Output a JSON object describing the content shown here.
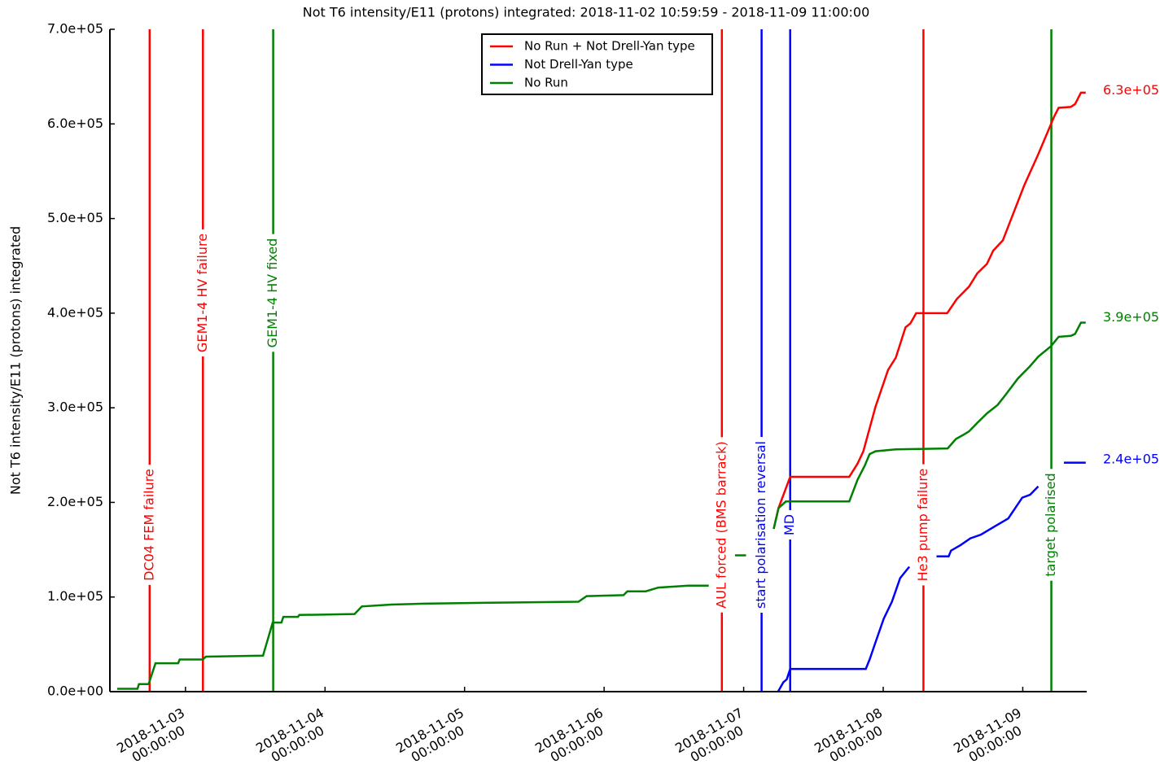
{
  "chart_data": {
    "type": "line",
    "title": "Not T6 intensity/E11 (protons) integrated: 2018-11-02 10:59:59 - 2018-11-09 11:00:00",
    "y_label": "Not T6 intensity/E11 (protons) integrated",
    "xlim": [
      "2018-11-02 10:59:59",
      "2018-11-09 11:00:00"
    ],
    "xticks": [
      "2018-11-03 00:00:00",
      "2018-11-04 00:00:00",
      "2018-11-05 00:00:00",
      "2018-11-06 00:00:00",
      "2018-11-07 00:00:00",
      "2018-11-08 00:00:00",
      "2018-11-09 00:00:00"
    ],
    "ylim": [
      0,
      700000
    ],
    "yticks": [
      {
        "value": 0,
        "label": "0.0e+00"
      },
      {
        "value": 100000,
        "label": "1.0e+05"
      },
      {
        "value": 200000,
        "label": "2.0e+05"
      },
      {
        "value": 300000,
        "label": "3.0e+05"
      },
      {
        "value": 400000,
        "label": "4.0e+05"
      },
      {
        "value": 500000,
        "label": "5.0e+05"
      },
      {
        "value": 600000,
        "label": "6.0e+05"
      },
      {
        "value": 700000,
        "label": "7.0e+05"
      }
    ],
    "legend": "upper center",
    "series": [
      {
        "name": "No Run + Not Drell-Yan type",
        "color": "#ff0000",
        "x": [
          "2018-11-07 05:10:00",
          "2018-11-07 06:00:00",
          "2018-11-07 08:00:00",
          "2018-11-07 18:10:00",
          "2018-11-07 19:35:00",
          "2018-11-07 20:35:00",
          "2018-11-07 22:40:00",
          "2018-11-08 00:50:00",
          "2018-11-08 02:10:00",
          "2018-11-08 03:50:00",
          "2018-11-08 04:40:00",
          "2018-11-08 05:40:00",
          "2018-11-08 11:00:00",
          "2018-11-08 12:40:00",
          "2018-11-08 14:45:00",
          "2018-11-08 16:10:00",
          "2018-11-08 17:50:00",
          "2018-11-08 18:55:00",
          "2018-11-08 20:35:00",
          "2018-11-08 22:25:00",
          "2018-11-09 00:15:00",
          "2018-11-09 02:40:00",
          "2018-11-09 05:25:00",
          "2018-11-09 06:10:00",
          "2018-11-09 08:15:00",
          "2018-11-09 09:00:00",
          "2018-11-09 10:00:00",
          "2018-11-09 10:50:00"
        ],
        "values": [
          172000,
          194000,
          227000,
          227000,
          241000,
          254000,
          301000,
          340000,
          353000,
          385000,
          389000,
          400000,
          400000,
          415000,
          428000,
          442000,
          452000,
          466000,
          477000,
          506000,
          535000,
          568000,
          608000,
          617000,
          618000,
          621000,
          633000,
          633000
        ],
        "last_value": {
          "value": 630000,
          "label": "6.3e+05"
        }
      },
      {
        "name": "Not Drell-Yan type",
        "color": "#0000ff",
        "x": [
          "2018-11-07 05:55:00",
          "2018-11-07 06:50:00",
          "2018-11-07 07:25:00",
          "2018-11-07 08:00:00",
          "2018-11-07 21:00:00",
          "2018-11-07 21:40:00",
          "2018-11-07 22:40:00",
          "2018-11-08 00:05:00",
          "2018-11-08 01:30:00",
          "2018-11-08 02:55:00",
          "2018-11-08 04:30:00",
          "2018-11-08 06:50:00",
          "2018-11-08 09:10:00",
          "2018-11-08 11:15:00",
          "2018-11-08 11:40:00",
          "2018-11-08 13:20:00",
          "2018-11-08 15:00:00",
          "2018-11-08 16:50:00",
          "2018-11-08 19:00:00",
          "2018-11-08 21:30:00",
          "2018-11-08 23:55:00",
          "2018-11-09 01:15:00",
          "2018-11-09 02:40:00",
          "2018-11-09 05:00:00",
          "2018-11-09 07:05:00",
          "2018-11-09 10:50:00"
        ],
        "values": [
          0,
          10000,
          13000,
          24000,
          24000,
          34000,
          52000,
          77000,
          95000,
          120000,
          132000,
          null,
          143000,
          143000,
          149000,
          155000,
          162000,
          166000,
          174000,
          183000,
          205000,
          208000,
          217000,
          null,
          242000,
          242000
        ],
        "last_value": {
          "value": 240000,
          "label": "2.4e+05"
        }
      },
      {
        "name": "No Run",
        "color": "#008000",
        "x": [
          "2018-11-02 12:15:00",
          "2018-11-02 15:45:00",
          "2018-11-02 16:00:00",
          "2018-11-02 17:40:00",
          "2018-11-02 18:50:00",
          "2018-11-02 22:45:00",
          "2018-11-02 23:00:00",
          "2018-11-03 03:00:00",
          "2018-11-03 03:30:00",
          "2018-11-03 13:20:00",
          "2018-11-03 15:00:00",
          "2018-11-03 16:30:00",
          "2018-11-03 16:50:00",
          "2018-11-03 19:20:00",
          "2018-11-03 19:35:00",
          "2018-11-04 05:05:00",
          "2018-11-04 06:20:00",
          "2018-11-04 11:25:00",
          "2018-11-04 17:00:00",
          "2018-11-05 04:10:00",
          "2018-11-05 19:35:00",
          "2018-11-05 21:00:00",
          "2018-11-06 03:20:00",
          "2018-11-06 04:00:00",
          "2018-11-06 07:10:00",
          "2018-11-06 09:20:00",
          "2018-11-06 14:30:00",
          "2018-11-06 18:00:00",
          "2018-11-06 20:00:00",
          "2018-11-06 22:30:00",
          "2018-11-07 00:25:00",
          "2018-11-07 03:00:00",
          "2018-11-07 05:10:00",
          "2018-11-07 06:00:00",
          "2018-11-07 07:15:00",
          "2018-11-07 18:10:00",
          "2018-11-07 19:35:00",
          "2018-11-07 20:50:00",
          "2018-11-07 21:40:00",
          "2018-11-07 22:40:00",
          "2018-11-08 02:10:00",
          "2018-11-08 11:05:00",
          "2018-11-08 12:30:00",
          "2018-11-08 13:40:00",
          "2018-11-08 14:45:00",
          "2018-11-08 16:10:00",
          "2018-11-08 17:50:00",
          "2018-11-08 19:40:00",
          "2018-11-08 21:05:00",
          "2018-11-08 23:10:00",
          "2018-11-09 01:15:00",
          "2018-11-09 02:40:00",
          "2018-11-09 04:50:00",
          "2018-11-09 06:10:00",
          "2018-11-09 08:15:00",
          "2018-11-09 09:00:00",
          "2018-11-09 10:00:00",
          "2018-11-09 10:50:00"
        ],
        "values": [
          3000,
          3000,
          8000,
          8000,
          30000,
          30000,
          34000,
          34000,
          37000,
          38000,
          73000,
          73000,
          79000,
          79000,
          81000,
          82000,
          90000,
          92000,
          93000,
          94000,
          95000,
          101000,
          102000,
          106000,
          106000,
          110000,
          112000,
          112000,
          null,
          144000,
          144000,
          null,
          172000,
          194000,
          201000,
          201000,
          224000,
          239000,
          251000,
          254000,
          256000,
          257000,
          267000,
          271000,
          275000,
          284000,
          294000,
          303000,
          314000,
          331000,
          344000,
          354000,
          365000,
          375000,
          376000,
          378000,
          390000,
          390000
        ],
        "last_value": {
          "value": 390000,
          "label": "3.9e+05"
        }
      }
    ],
    "annotations": [
      {
        "x": "2018-11-02 17:50:00",
        "label": "DC04 FEM failure",
        "color": "#ff0000"
      },
      {
        "x": "2018-11-03 03:00:00",
        "label": "GEM1-4 HV failure",
        "color": "#ff0000"
      },
      {
        "x": "2018-11-03 15:05:00",
        "label": "GEM1-4 HV fixed",
        "color": "#008000"
      },
      {
        "x": "2018-11-06 20:15:00",
        "label": "AUL forced (BMS barrack)",
        "color": "#ff0000"
      },
      {
        "x": "2018-11-07 03:05:00",
        "label": "start polarisation reversal",
        "color": "#0000ff"
      },
      {
        "x": "2018-11-07 08:00:00",
        "label": "MD",
        "color": "#0000ff"
      },
      {
        "x": "2018-11-08 06:55:00",
        "label": "He3 pump failure",
        "color": "#ff0000"
      },
      {
        "x": "2018-11-09 04:55:00",
        "label": "target polarised",
        "color": "#008000"
      }
    ]
  }
}
